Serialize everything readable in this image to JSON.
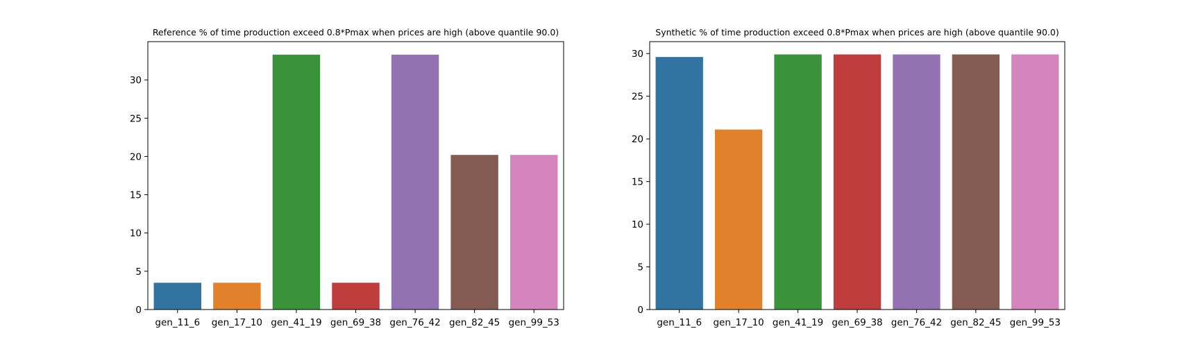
{
  "chart_data": [
    {
      "type": "bar",
      "title": "Reference % of time production exceed 0.8*Pmax when prices are high (above quantile 90.0)",
      "xlabel": "",
      "ylabel": "",
      "categories": [
        "gen_11_6",
        "gen_17_10",
        "gen_41_19",
        "gen_69_38",
        "gen_76_42",
        "gen_82_45",
        "gen_99_53"
      ],
      "values": [
        3.5,
        3.5,
        33.3,
        3.5,
        33.3,
        20.2,
        20.2
      ],
      "colors": [
        "#3274a1",
        "#e1812c",
        "#3a923a",
        "#c03d3e",
        "#9372b2",
        "#845b53",
        "#d684bd"
      ],
      "ylim": [
        0,
        35
      ],
      "yticks": [
        0,
        5,
        10,
        15,
        20,
        25,
        30
      ],
      "grid": false,
      "legend": "none"
    },
    {
      "type": "bar",
      "title": "Synthetic % of time production exceed 0.8*Pmax when prices are high (above quantile 90.0)",
      "xlabel": "",
      "ylabel": "",
      "categories": [
        "gen_11_6",
        "gen_17_10",
        "gen_41_19",
        "gen_69_38",
        "gen_76_42",
        "gen_82_45",
        "gen_99_53"
      ],
      "values": [
        29.6,
        21.1,
        29.9,
        29.9,
        29.9,
        29.9,
        29.9
      ],
      "colors": [
        "#3274a1",
        "#e1812c",
        "#3a923a",
        "#c03d3e",
        "#9372b2",
        "#845b53",
        "#d684bd"
      ],
      "ylim": [
        0,
        31.4
      ],
      "yticks": [
        0,
        5,
        10,
        15,
        20,
        25,
        30
      ],
      "grid": false,
      "legend": "none"
    }
  ]
}
